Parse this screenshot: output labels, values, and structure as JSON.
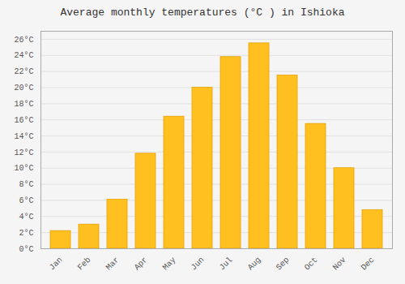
{
  "chart_data": {
    "type": "bar",
    "title": "Average monthly temperatures (°C ) in Ishioka",
    "categories": [
      "Jan",
      "Feb",
      "Mar",
      "Apr",
      "May",
      "Jun",
      "Jul",
      "Aug",
      "Sep",
      "Oct",
      "Nov",
      "Dec"
    ],
    "values": [
      2.2,
      3.0,
      6.1,
      11.8,
      16.4,
      20.0,
      23.8,
      25.5,
      21.5,
      15.5,
      10.0,
      4.8
    ],
    "color": "#FFC020",
    "ylim": [
      0,
      27
    ],
    "yticks": [
      {
        "value": 0,
        "label": "0°C"
      },
      {
        "value": 2,
        "label": "2°C"
      },
      {
        "value": 4,
        "label": "4°C"
      },
      {
        "value": 6,
        "label": "6°C"
      },
      {
        "value": 8,
        "label": "8°C"
      },
      {
        "value": 10,
        "label": "10°C"
      },
      {
        "value": 12,
        "label": "12°C"
      },
      {
        "value": 14,
        "label": "14°C"
      },
      {
        "value": 16,
        "label": "16°C"
      },
      {
        "value": 18,
        "label": "18°C"
      },
      {
        "value": 20,
        "label": "20°C"
      },
      {
        "value": 22,
        "label": "22°C"
      },
      {
        "value": 24,
        "label": "24°C"
      },
      {
        "value": 26,
        "label": "26°C"
      }
    ],
    "grid": true
  }
}
